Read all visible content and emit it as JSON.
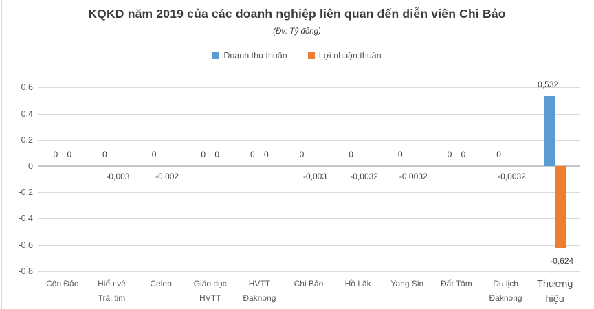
{
  "chart": {
    "title": "KQKD năm 2019 của các doanh nghiệp liên quan đến diễn viên Chi Bảo",
    "subtitle": "(Đv: Tỷ đồng)"
  },
  "chart_data": {
    "type": "bar",
    "title": "KQKD năm 2019 của các doanh nghiệp liên quan đến diễn viên Chi Bảo",
    "subtitle": "(Đv: Tỷ đồng)",
    "legend_position": "top",
    "grid": true,
    "ylim": [
      -0.8,
      0.6
    ],
    "yticks": [
      0.6,
      0.4,
      0.2,
      0,
      -0.2,
      -0.4,
      -0.6,
      -0.8
    ],
    "ytick_labels": [
      "0.6",
      "0.4",
      "0.2",
      "0",
      "-0.2",
      "-0.4",
      "-0.6",
      "-0.8"
    ],
    "categories": [
      "Côn Đảo",
      "Hiểu về Trái tim",
      "Celeb",
      "Giáo dục HVTT",
      "HVTT Đaknong",
      "Chi Bảo",
      "Hồ Lăk",
      "Yang Sin",
      "Đất Tâm",
      "Du lịch Đaknong",
      "Thương hiệu"
    ],
    "category_lines": [
      [
        "Côn Đảo"
      ],
      [
        "Hiểu về",
        "Trái tim"
      ],
      [
        "Celeb"
      ],
      [
        "Giáo dục",
        "HVTT"
      ],
      [
        "HVTT",
        "Đaknong"
      ],
      [
        "Chi Bảo"
      ],
      [
        "Hồ Lăk"
      ],
      [
        "Yang Sin"
      ],
      [
        "Đất Tâm"
      ],
      [
        "Du lịch",
        "Đaknong"
      ],
      [
        "Thương",
        "hiệu"
      ]
    ],
    "emphasized_category": "Thương hiệu",
    "series": [
      {
        "name": "Doanh thu thuần",
        "color": "#5B9BD5",
        "values": [
          0,
          0,
          0,
          0,
          0,
          0,
          0,
          0,
          0,
          0,
          0.532
        ],
        "labels": [
          "0",
          "0",
          "0",
          "0",
          "0",
          "0",
          "0",
          "0",
          "0",
          "0",
          "0,532"
        ]
      },
      {
        "name": "Lợi nhuận thuần",
        "color": "#ED7D31",
        "values": [
          0,
          -0.003,
          -0.002,
          0,
          0,
          -0.003,
          -0.0032,
          -0.0032,
          0,
          -0.0032,
          -0.624
        ],
        "labels": [
          "0",
          "-0,003",
          "-0,002",
          "0",
          "0",
          "-0,003",
          "-0,0032",
          "-0,0032",
          "0",
          "-0,0032",
          "-0,624"
        ]
      }
    ]
  }
}
